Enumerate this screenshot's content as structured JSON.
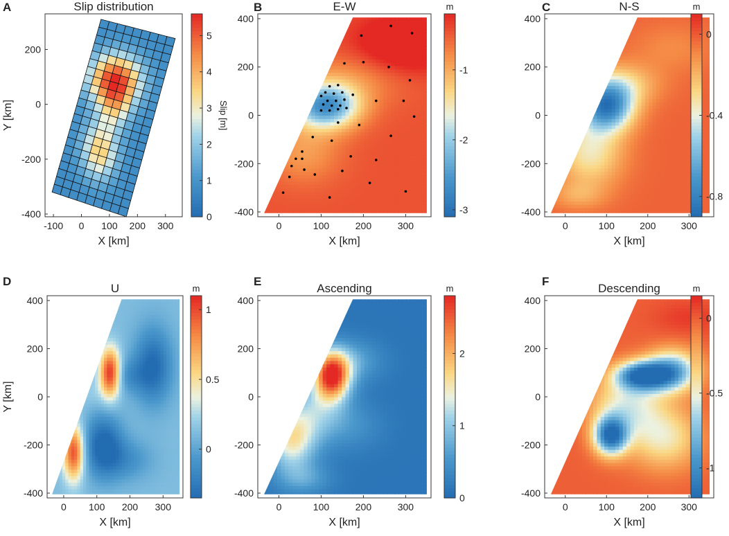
{
  "chart_data": [
    {
      "panel": "A",
      "type": "heatmap",
      "title": "Slip distribution",
      "xlabel": "X [km]",
      "ylabel": "Y [km]",
      "xlim": [
        -130,
        360
      ],
      "ylim": [
        -410,
        330
      ],
      "xticks": [
        -100,
        0,
        100,
        200,
        300
      ],
      "xtick_labels": [
        "-100",
        "0",
        "100",
        "200",
        "300"
      ],
      "yticks": [
        -400,
        -200,
        0,
        200
      ],
      "ytick_labels": [
        "-400",
        "-200",
        "0",
        "200"
      ],
      "colorbar": {
        "label": "Slip [m]",
        "unit": "",
        "range": [
          0,
          5.6
        ],
        "ticks": [
          0,
          1,
          2,
          3,
          4,
          5
        ],
        "tick_labels": [
          "0",
          "1",
          "2",
          "3",
          "4",
          "5"
        ]
      },
      "fault_grid": {
        "rows": 22,
        "cols": 9,
        "corners": [
          [
            70,
            310
          ],
          [
            335,
            240
          ],
          [
            160,
            -410
          ],
          [
            -105,
            -320
          ]
        ]
      },
      "slip_peaks": [
        {
          "x": 120,
          "y": 90,
          "slip": 5.3,
          "sx": 65,
          "sy": 65
        },
        {
          "x": 65,
          "y": -170,
          "slip": 3.6,
          "sx": 45,
          "sy": 75
        },
        {
          "x": 120,
          "y": -10,
          "slip": 2.6,
          "sx": 40,
          "sy": 60
        }
      ],
      "background_slip": 0.8
    },
    {
      "panel": "B",
      "type": "heatmap",
      "title": "E-W",
      "xlabel": "X [km]",
      "ylabel": "",
      "xlim": [
        -50,
        360
      ],
      "ylim": [
        -420,
        420
      ],
      "xticks": [
        0,
        100,
        200,
        300
      ],
      "xtick_labels": [
        "0",
        "100",
        "200",
        "300"
      ],
      "yticks": [
        -400,
        -200,
        0,
        200,
        400
      ],
      "ytick_labels": [
        "-400",
        "-200",
        "0",
        "200",
        "400"
      ],
      "colorbar": {
        "unit": "m",
        "label": "",
        "range": [
          -3.1,
          -0.2
        ],
        "ticks": [
          -3,
          -2,
          -1
        ],
        "tick_labels": [
          "-3",
          "-2",
          "-1"
        ]
      },
      "base_value": -0.45,
      "anomalies": [
        {
          "x": 110,
          "y": 40,
          "v": -2.6,
          "sx": 55,
          "sy": 65
        },
        {
          "x": 60,
          "y": -150,
          "v": -0.9,
          "sx": 60,
          "sy": 90
        },
        {
          "x": 170,
          "y": 150,
          "v": -0.8,
          "sx": 90,
          "sy": 80
        },
        {
          "x": 300,
          "y": 300,
          "v": 0.25,
          "sx": 80,
          "sy": 80
        }
      ],
      "stations": [
        [
          265,
          370
        ],
        [
          195,
          330
        ],
        [
          315,
          340
        ],
        [
          155,
          215
        ],
        [
          200,
          220
        ],
        [
          260,
          200
        ],
        [
          310,
          145
        ],
        [
          120,
          120
        ],
        [
          140,
          125
        ],
        [
          100,
          80
        ],
        [
          110,
          95
        ],
        [
          130,
          90
        ],
        [
          150,
          95
        ],
        [
          175,
          85
        ],
        [
          115,
          60
        ],
        [
          135,
          60
        ],
        [
          155,
          65
        ],
        [
          105,
          45
        ],
        [
          125,
          40
        ],
        [
          145,
          40
        ],
        [
          100,
          20
        ],
        [
          120,
          20
        ],
        [
          140,
          25
        ],
        [
          160,
          30
        ],
        [
          230,
          60
        ],
        [
          295,
          60
        ],
        [
          320,
          -5
        ],
        [
          140,
          -30
        ],
        [
          190,
          -40
        ],
        [
          80,
          -90
        ],
        [
          125,
          -105
        ],
        [
          265,
          -85
        ],
        [
          55,
          -150
        ],
        [
          40,
          -180
        ],
        [
          55,
          -180
        ],
        [
          170,
          -170
        ],
        [
          230,
          -185
        ],
        [
          30,
          -210
        ],
        [
          60,
          -225
        ],
        [
          150,
          -230
        ],
        [
          85,
          -245
        ],
        [
          215,
          -280
        ],
        [
          25,
          -255
        ],
        [
          10,
          -320
        ],
        [
          120,
          -340
        ],
        [
          300,
          -315
        ]
      ]
    },
    {
      "panel": "C",
      "type": "heatmap",
      "title": "N-S",
      "xlabel": "X [km]",
      "ylabel": "",
      "xlim": [
        -50,
        360
      ],
      "ylim": [
        -420,
        420
      ],
      "xticks": [
        0,
        100,
        200,
        300
      ],
      "xtick_labels": [
        "0",
        "100",
        "200",
        "300"
      ],
      "yticks": [
        -400,
        -200,
        0,
        200,
        400
      ],
      "ytick_labels": [
        "-400",
        "-200",
        "0",
        "200",
        "400"
      ],
      "colorbar": {
        "unit": "m",
        "label": "",
        "range": [
          -0.9,
          0.1
        ],
        "ticks": [
          0,
          -0.4,
          -0.8
        ],
        "tick_labels": [
          "0",
          "-0.4",
          "-0.8"
        ]
      },
      "base_value": -0.02,
      "anomalies": [
        {
          "x": 100,
          "y": 40,
          "v": -0.8,
          "sx": 45,
          "sy": 70
        },
        {
          "x": 60,
          "y": -150,
          "v": -0.35,
          "sx": 55,
          "sy": 100
        },
        {
          "x": 140,
          "y": 130,
          "v": -0.25,
          "sx": 60,
          "sy": 60
        },
        {
          "x": 30,
          "y": -330,
          "v": -0.15,
          "sx": 45,
          "sy": 40
        },
        {
          "x": 260,
          "y": 280,
          "v": -0.1,
          "sx": 70,
          "sy": 70
        }
      ]
    },
    {
      "panel": "D",
      "type": "heatmap",
      "title": "U",
      "xlabel": "X [km]",
      "ylabel": "Y [km]",
      "xlim": [
        -50,
        360
      ],
      "ylim": [
        -420,
        420
      ],
      "xticks": [
        0,
        100,
        200,
        300
      ],
      "xtick_labels": [
        "0",
        "100",
        "200",
        "300"
      ],
      "yticks": [
        -400,
        -200,
        0,
        200,
        400
      ],
      "ytick_labels": [
        "-400",
        "-200",
        "0",
        "200",
        "400"
      ],
      "colorbar": {
        "unit": "m",
        "label": "",
        "range": [
          -0.35,
          1.1
        ],
        "ticks": [
          0,
          0.5,
          1
        ],
        "tick_labels": [
          "0",
          "0.5",
          "1"
        ]
      },
      "base_value": 0.12,
      "anomalies": [
        {
          "x": 140,
          "y": 100,
          "v": 1.15,
          "sx": 22,
          "sy": 70
        },
        {
          "x": 30,
          "y": -230,
          "v": 1.0,
          "sx": 22,
          "sy": 80
        },
        {
          "x": 80,
          "y": 20,
          "v": 0.2,
          "sx": 30,
          "sy": 50
        },
        {
          "x": 120,
          "y": -200,
          "v": -0.4,
          "sx": 40,
          "sy": 90
        },
        {
          "x": 270,
          "y": 130,
          "v": -0.35,
          "sx": 40,
          "sy": 110
        },
        {
          "x": 190,
          "y": 90,
          "v": -0.1,
          "sx": 45,
          "sy": 50
        },
        {
          "x": 190,
          "y": -260,
          "v": -0.1,
          "sx": 55,
          "sy": 60
        }
      ]
    },
    {
      "panel": "E",
      "type": "heatmap",
      "title": "Ascending",
      "xlabel": "X [km]",
      "ylabel": "",
      "xlim": [
        -50,
        360
      ],
      "ylim": [
        -420,
        420
      ],
      "xticks": [
        0,
        100,
        200,
        300
      ],
      "xtick_labels": [
        "0",
        "100",
        "200",
        "300"
      ],
      "yticks": [
        -400,
        -200,
        0,
        200,
        400
      ],
      "ytick_labels": [
        "-400",
        "-200",
        "0",
        "200",
        "400"
      ],
      "colorbar": {
        "unit": "m",
        "label": "",
        "range": [
          0,
          2.8
        ],
        "ticks": [
          0,
          1,
          2
        ],
        "tick_labels": [
          "0",
          "1",
          "2"
        ]
      },
      "base_value": 0.12,
      "anomalies": [
        {
          "x": 125,
          "y": 90,
          "v": 2.75,
          "sx": 30,
          "sy": 70
        },
        {
          "x": 30,
          "y": -180,
          "v": 1.5,
          "sx": 40,
          "sy": 90
        },
        {
          "x": 90,
          "y": -60,
          "v": 0.9,
          "sx": 50,
          "sy": 90
        },
        {
          "x": 170,
          "y": 150,
          "v": 0.7,
          "sx": 50,
          "sy": 60
        },
        {
          "x": 60,
          "y": -340,
          "v": 0.6,
          "sx": 45,
          "sy": 45
        },
        {
          "x": 180,
          "y": -120,
          "v": 0.4,
          "sx": 50,
          "sy": 70
        }
      ]
    },
    {
      "panel": "F",
      "type": "heatmap",
      "title": "Descending",
      "xlabel": "X [km]",
      "ylabel": "",
      "xlim": [
        -50,
        360
      ],
      "ylim": [
        -420,
        420
      ],
      "xticks": [
        0,
        100,
        200,
        300
      ],
      "xtick_labels": [
        "0",
        "100",
        "200",
        "300"
      ],
      "yticks": [
        -400,
        -200,
        0,
        200,
        400
      ],
      "ytick_labels": [
        "-400",
        "-200",
        "0",
        "200",
        "400"
      ],
      "colorbar": {
        "unit": "m",
        "label": "",
        "range": [
          -1.2,
          0.15
        ],
        "ticks": [
          0,
          -0.5,
          -1
        ],
        "tick_labels": [
          "0",
          "-0.5",
          "-1"
        ]
      },
      "base_value": 0.0,
      "anomalies": [
        {
          "x": 190,
          "y": 90,
          "v": -1.15,
          "sx": 45,
          "sy": 40
        },
        {
          "x": 260,
          "y": 110,
          "v": -0.8,
          "sx": 45,
          "sy": 60
        },
        {
          "x": 110,
          "y": -160,
          "v": -1.15,
          "sx": 28,
          "sy": 55
        },
        {
          "x": 150,
          "y": -30,
          "v": -0.5,
          "sx": 60,
          "sy": 90
        },
        {
          "x": 240,
          "y": -170,
          "v": -0.45,
          "sx": 60,
          "sy": 90
        },
        {
          "x": 300,
          "y": 330,
          "v": 0.1,
          "sx": 60,
          "sy": 50
        }
      ]
    }
  ]
}
